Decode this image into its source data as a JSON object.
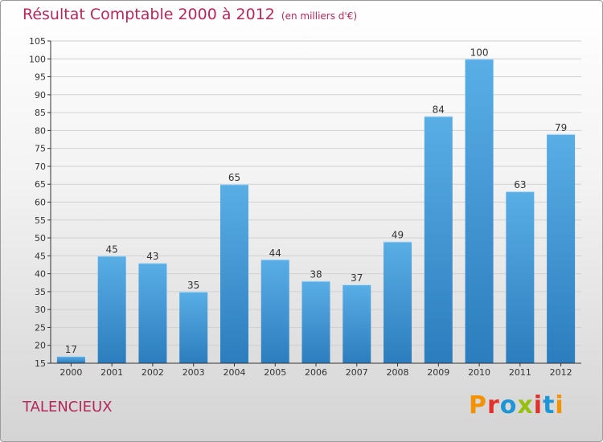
{
  "header": {
    "title": "Résultat Comptable 2000 à 2012",
    "subtitle": "(en milliers d'€)"
  },
  "footer": {
    "commune": "TALENCIEUX",
    "logo_text": "Proxiti",
    "logo_colors": [
      "#f39200",
      "#e2312a",
      "#1e95d4",
      "#97bf0d",
      "#e2312a",
      "#1e95d4",
      "#f39200"
    ]
  },
  "colors": {
    "title": "#b5285b",
    "bar_light": "#5aaee6",
    "bar_dark": "#2b7dbd",
    "axis": "#333333"
  },
  "chart_data": {
    "type": "bar",
    "title": "Résultat Comptable 2000 à 2012",
    "xlabel": "",
    "ylabel": "",
    "categories": [
      "2000",
      "2001",
      "2002",
      "2003",
      "2004",
      "2005",
      "2006",
      "2007",
      "2008",
      "2009",
      "2010",
      "2011",
      "2012"
    ],
    "values": [
      17,
      45,
      43,
      35,
      65,
      44,
      38,
      37,
      49,
      84,
      100,
      63,
      79
    ],
    "ylim": [
      15,
      105
    ],
    "yticks": [
      15,
      20,
      25,
      30,
      35,
      40,
      45,
      50,
      55,
      60,
      65,
      70,
      75,
      80,
      85,
      90,
      95,
      100,
      105
    ],
    "grid": true
  }
}
